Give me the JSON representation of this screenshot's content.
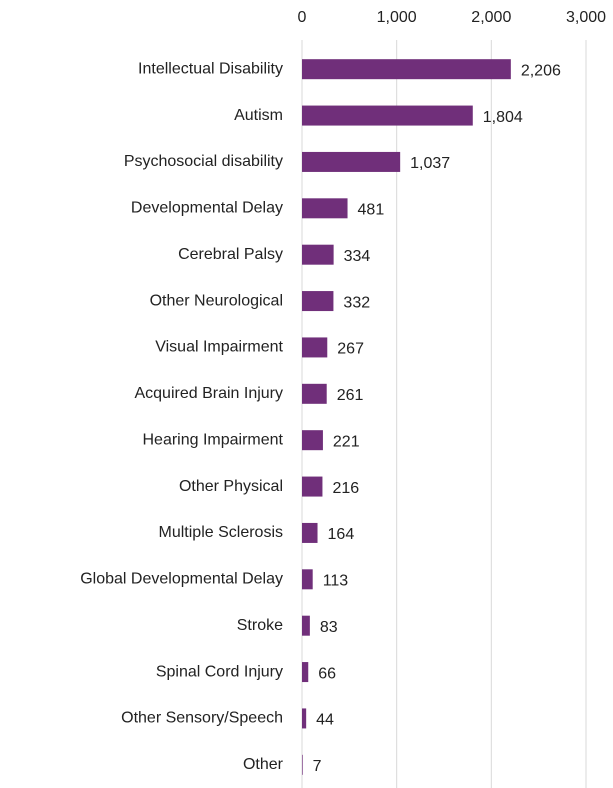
{
  "chart_data": {
    "type": "bar",
    "orientation": "horizontal",
    "categories": [
      "Intellectual Disability",
      "Autism",
      "Psychosocial disability",
      "Developmental Delay",
      "Cerebral Palsy",
      "Other Neurological",
      "Visual Impairment",
      "Acquired Brain Injury",
      "Hearing Impairment",
      "Other Physical",
      "Multiple Sclerosis",
      "Global Developmental Delay",
      "Stroke",
      "Spinal Cord Injury",
      "Other Sensory/Speech",
      "Other"
    ],
    "values": [
      2206,
      1804,
      1037,
      481,
      334,
      332,
      267,
      261,
      221,
      216,
      164,
      113,
      83,
      66,
      44,
      7
    ],
    "value_labels": [
      "2,206",
      "1,804",
      "1,037",
      "481",
      "334",
      "332",
      "267",
      "261",
      "221",
      "216",
      "164",
      "113",
      "83",
      "66",
      "44",
      "7"
    ],
    "color": "#702f7a",
    "xlim": [
      0,
      3000
    ],
    "xticks": [
      0,
      {
        "value": 1000,
        "label": "1,000"
      },
      {
        "value": 2000,
        "label": "2,000"
      },
      {
        "value": 3000,
        "label": "3,000"
      }
    ],
    "grid": true
  }
}
